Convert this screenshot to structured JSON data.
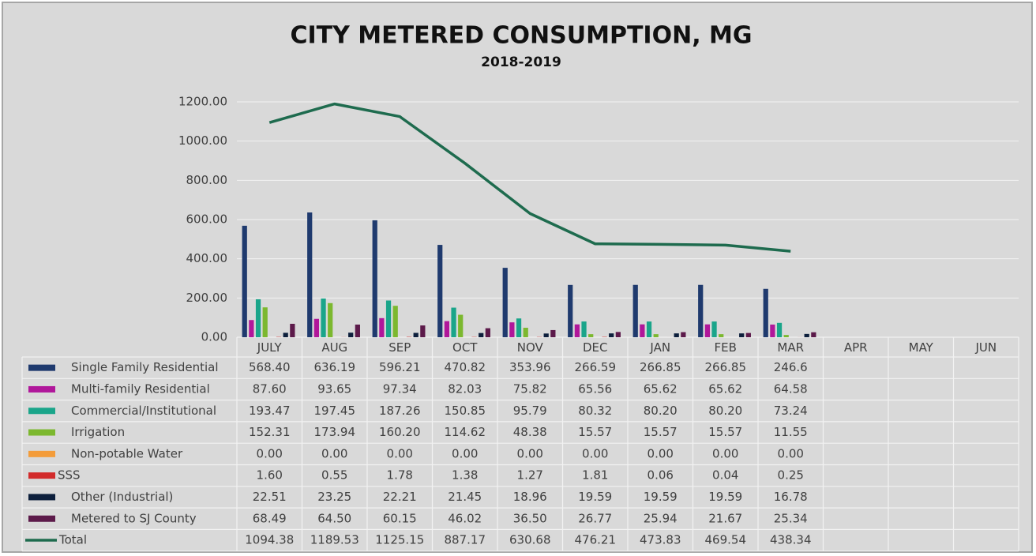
{
  "chart_data": {
    "type": "bar",
    "title": "CITY METERED CONSUMPTION, MG",
    "subtitle": "2018-2019",
    "categories": [
      "JULY",
      "AUG",
      "SEP",
      "OCT",
      "NOV",
      "DEC",
      "JAN",
      "FEB",
      "MAR",
      "APR",
      "MAY",
      "JUN"
    ],
    "ylim": [
      0,
      1200
    ],
    "yticks": [
      {
        "value": 0,
        "label": "0.00"
      },
      {
        "value": 200,
        "label": "200.00"
      },
      {
        "value": 400,
        "label": "400.00"
      },
      {
        "value": 600,
        "label": "600.00"
      },
      {
        "value": 800,
        "label": "800.00"
      },
      {
        "value": 1000,
        "label": "1000.00"
      },
      {
        "value": 1200,
        "label": "1200.00"
      }
    ],
    "grid": true,
    "series": [
      {
        "name": "Single Family Residential",
        "color": "#1f3a6e",
        "type": "bar",
        "values": [
          568.4,
          636.19,
          596.21,
          470.82,
          353.96,
          266.59,
          266.85,
          266.85,
          246.6,
          null,
          null,
          null
        ],
        "value_labels": [
          "568.40",
          "636.19",
          "596.21",
          "470.82",
          "353.96",
          "266.59",
          "266.85",
          "266.85",
          "246.6",
          null,
          null,
          null
        ]
      },
      {
        "name": "Multi-family Residential",
        "color": "#b0179a",
        "type": "bar",
        "values": [
          87.6,
          93.65,
          97.34,
          82.03,
          75.82,
          65.56,
          65.62,
          65.62,
          64.58,
          null,
          null,
          null
        ],
        "value_labels": [
          "87.60",
          "93.65",
          "97.34",
          "82.03",
          "75.82",
          "65.56",
          "65.62",
          "65.62",
          "64.58",
          null,
          null,
          null
        ]
      },
      {
        "name": "Commercial/Institutional",
        "color": "#1aa58a",
        "type": "bar",
        "values": [
          193.47,
          197.45,
          187.26,
          150.85,
          95.79,
          80.32,
          80.2,
          80.2,
          73.24,
          null,
          null,
          null
        ],
        "value_labels": [
          "193.47",
          "197.45",
          "187.26",
          "150.85",
          "95.79",
          "80.32",
          "80.20",
          "80.20",
          "73.24",
          null,
          null,
          null
        ]
      },
      {
        "name": "Irrigation",
        "color": "#7cb82f",
        "type": "bar",
        "values": [
          152.31,
          173.94,
          160.2,
          114.62,
          48.38,
          15.57,
          15.57,
          15.57,
          11.55,
          null,
          null,
          null
        ],
        "value_labels": [
          "152.31",
          "173.94",
          "160.20",
          "114.62",
          "48.38",
          "15.57",
          "15.57",
          "15.57",
          "11.55",
          null,
          null,
          null
        ]
      },
      {
        "name": "Non-potable Water",
        "color": "#f39c3a",
        "type": "bar",
        "values": [
          0,
          0,
          0,
          0,
          0,
          0,
          0,
          0,
          0,
          null,
          null,
          null
        ],
        "value_labels": [
          "0.00",
          "0.00",
          "0.00",
          "0.00",
          "0.00",
          "0.00",
          "0.00",
          "0.00",
          "0.00",
          null,
          null,
          null
        ]
      },
      {
        "name": "SSS",
        "color": "#d22b2b",
        "type": "bar",
        "values": [
          1.6,
          0.55,
          1.78,
          1.38,
          1.27,
          1.81,
          0.06,
          0.04,
          0.25,
          null,
          null,
          null
        ],
        "value_labels": [
          "1.60",
          "0.55",
          "1.78",
          "1.38",
          "1.27",
          "1.81",
          "0.06",
          "0.04",
          "0.25",
          null,
          null,
          null
        ]
      },
      {
        "name": "Other (Industrial)",
        "color": "#0d1f3c",
        "type": "bar",
        "values": [
          22.51,
          23.25,
          22.21,
          21.45,
          18.96,
          19.59,
          19.59,
          19.59,
          16.78,
          null,
          null,
          null
        ],
        "value_labels": [
          "22.51",
          "23.25",
          "22.21",
          "21.45",
          "18.96",
          "19.59",
          "19.59",
          "19.59",
          "16.78",
          null,
          null,
          null
        ]
      },
      {
        "name": "Metered to SJ County",
        "color": "#5c1a4a",
        "type": "bar",
        "values": [
          68.49,
          64.5,
          60.15,
          46.02,
          36.5,
          26.77,
          25.94,
          21.67,
          25.34,
          null,
          null,
          null
        ],
        "value_labels": [
          "68.49",
          "64.50",
          "60.15",
          "46.02",
          "36.50",
          "26.77",
          "25.94",
          "21.67",
          "25.34",
          null,
          null,
          null
        ]
      },
      {
        "name": "Total",
        "color": "#1e6b4e",
        "type": "line",
        "values": [
          1094.38,
          1189.53,
          1125.15,
          887.17,
          630.68,
          476.21,
          473.83,
          469.54,
          438.34,
          null,
          null,
          null
        ],
        "value_labels": [
          "1094.38",
          "1189.53",
          "1125.15",
          "887.17",
          "630.68",
          "476.21",
          "473.83",
          "469.54",
          "438.34",
          null,
          null,
          null
        ]
      }
    ]
  }
}
